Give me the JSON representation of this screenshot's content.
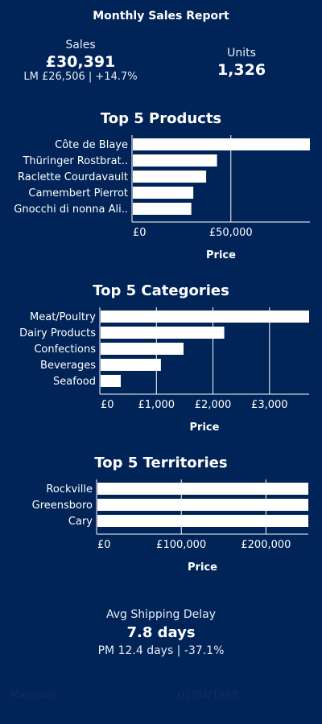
{
  "report": {
    "title": "Monthly Sales Report"
  },
  "kpis": {
    "sales": {
      "label": "Sales",
      "value": "£30,391",
      "sub": "LM £26,506 | +14.7%"
    },
    "units": {
      "label": "Units",
      "value": "1,326"
    }
  },
  "chart_data": [
    {
      "type": "bar",
      "title": "Top 5 Products",
      "xlabel": "Price",
      "ylabel": "",
      "categories": [
        "Côte de Blaye",
        "Thüringer Rostbrat..",
        "Raclette Courdavault",
        "Camembert Pierrot",
        "Gnocchi di nonna Ali.."
      ],
      "values": [
        90000,
        43000,
        37500,
        31000,
        30000
      ],
      "xlim": [
        0,
        90000
      ],
      "xticks": [
        0,
        50000
      ],
      "xtick_labels": [
        "£0",
        "£50,000"
      ],
      "grid": true
    },
    {
      "type": "bar",
      "title": "Top 5 Categories",
      "xlabel": "Price",
      "ylabel": "",
      "categories": [
        "Meat/Poultry",
        "Dairy Products",
        "Confections",
        "Beverages",
        "Seafood"
      ],
      "values": [
        3700,
        2200,
        1480,
        1080,
        370
      ],
      "xlim": [
        0,
        3700
      ],
      "xticks": [
        0,
        1000,
        2000,
        3000
      ],
      "xtick_labels": [
        "£0",
        "£1,000",
        "£2,000",
        "£3,000"
      ],
      "grid": true
    },
    {
      "type": "bar",
      "title": "Top 5 Territories",
      "xlabel": "Price",
      "ylabel": "",
      "categories": [
        "Rockville",
        "Greensboro",
        "Cary"
      ],
      "values": [
        250000,
        250000,
        250000
      ],
      "xlim": [
        0,
        250000
      ],
      "xticks": [
        0,
        100000,
        200000
      ],
      "xtick_labels": [
        "£0",
        "£100,000",
        "£200,000"
      ],
      "grid": true
    }
  ],
  "shipping": {
    "label": "Avg Shipping Delay",
    "value": "7.8 days",
    "sub": "PM 12.4 days | -37.1%"
  },
  "footer": {
    "name": "Margaret",
    "date": "01/04/1998"
  },
  "colors": {
    "background": "#002457",
    "bar": "#ffffff",
    "text": "#ffffff"
  }
}
